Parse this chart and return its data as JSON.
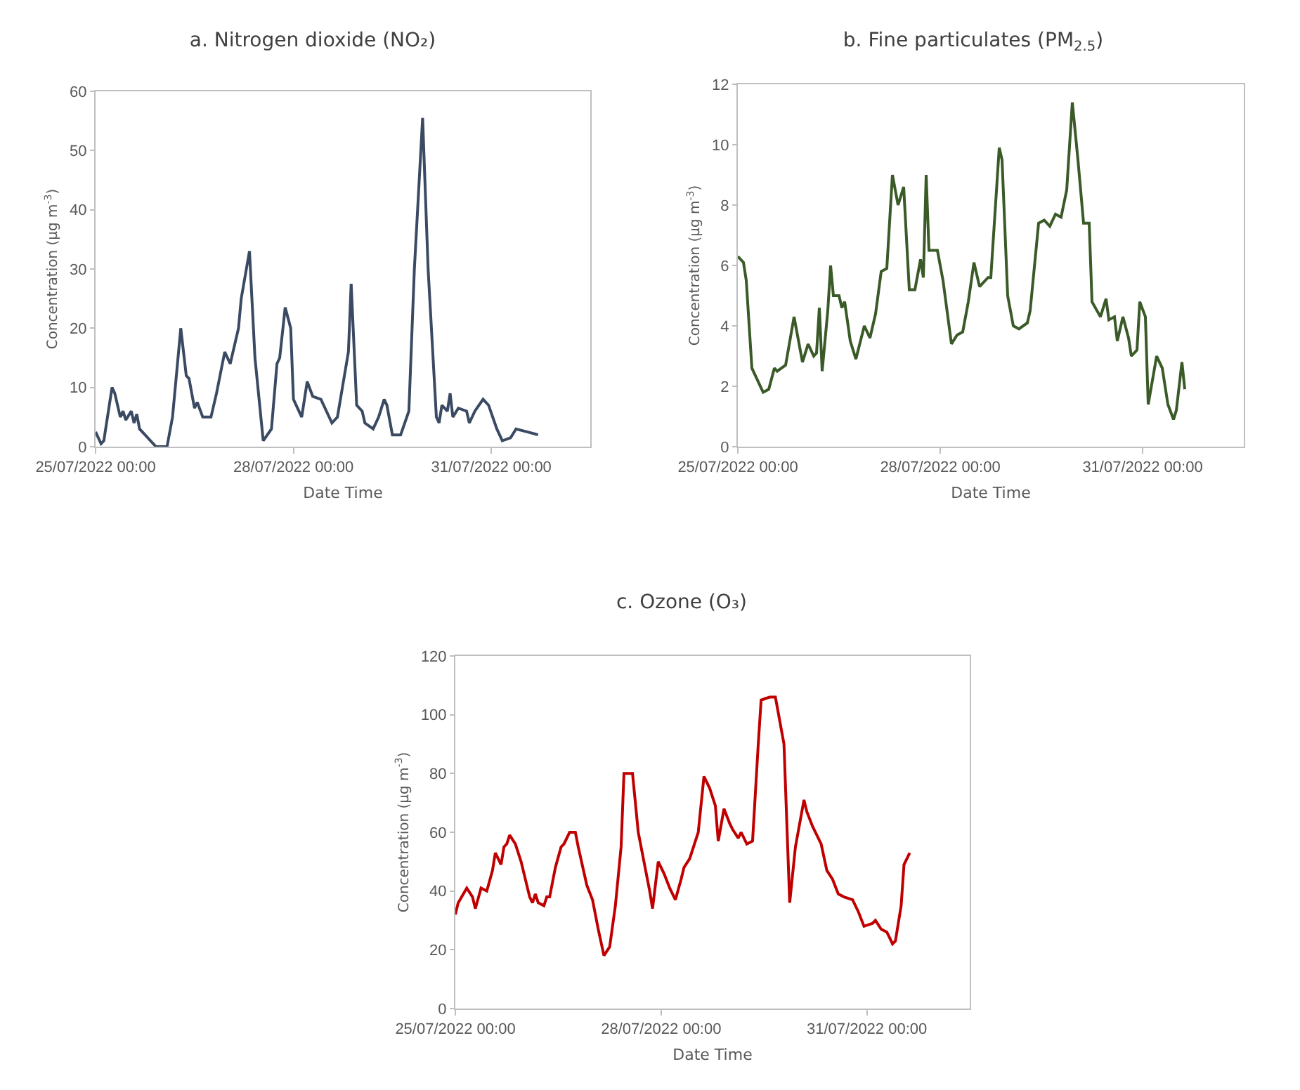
{
  "chart_data": [
    {
      "type": "line",
      "title": "a. Nitrogen dioxide (NO₂)",
      "xlabel": "Date Time",
      "ylabel": "Concentration (µg m$^{-3}$)",
      "color": "#3b4a63",
      "x": [
        "2022-07-25T00:00",
        "2022-07-25T02:00",
        "2022-07-25T03:00",
        "2022-07-25T06:00",
        "2022-07-25T07:00",
        "2022-07-25T09:00",
        "2022-07-25T10:00",
        "2022-07-25T11:00",
        "2022-07-25T13:00",
        "2022-07-25T14:00",
        "2022-07-25T15:00",
        "2022-07-25T16:00",
        "2022-07-25T18:00",
        "2022-07-25T20:00",
        "2022-07-25T22:00",
        "2022-07-26T02:00",
        "2022-07-26T04:00",
        "2022-07-26T07:00",
        "2022-07-26T09:00",
        "2022-07-26T10:00",
        "2022-07-26T12:00",
        "2022-07-26T13:00",
        "2022-07-26T15:00",
        "2022-07-26T18:00",
        "2022-07-26T20:00",
        "2022-07-26T23:00",
        "2022-07-27T01:00",
        "2022-07-27T04:00",
        "2022-07-27T05:00",
        "2022-07-27T08:00",
        "2022-07-27T10:00",
        "2022-07-27T13:00",
        "2022-07-27T16:00",
        "2022-07-27T18:00",
        "2022-07-27T19:00",
        "2022-07-27T21:00",
        "2022-07-27T23:00",
        "2022-07-28T00:00",
        "2022-07-28T03:00",
        "2022-07-28T05:00",
        "2022-07-28T07:00",
        "2022-07-28T10:00",
        "2022-07-28T14:00",
        "2022-07-28T16:00",
        "2022-07-28T20:00",
        "2022-07-28T21:00",
        "2022-07-28T23:00",
        "2022-07-29T01:00",
        "2022-07-29T02:00",
        "2022-07-29T05:00",
        "2022-07-29T07:00",
        "2022-07-29T09:00",
        "2022-07-29T10:00",
        "2022-07-29T12:00",
        "2022-07-29T15:00",
        "2022-07-29T18:00",
        "2022-07-29T20:00",
        "2022-07-29T23:00",
        "2022-07-30T01:00",
        "2022-07-30T04:00",
        "2022-07-30T05:00",
        "2022-07-30T06:00",
        "2022-07-30T08:00",
        "2022-07-30T09:00",
        "2022-07-30T10:00",
        "2022-07-30T12:00",
        "2022-07-30T15:00",
        "2022-07-30T16:00",
        "2022-07-30T18:00",
        "2022-07-30T21:00",
        "2022-07-30T23:00",
        "2022-07-31T02:00",
        "2022-07-31T04:00",
        "2022-07-31T07:00",
        "2022-07-31T09:00",
        "2022-07-31T13:00",
        "2022-07-31T17:00"
      ],
      "values": [
        2.5,
        0.5,
        1,
        10,
        9,
        5,
        6,
        4.5,
        6,
        4,
        5.5,
        3,
        2,
        1,
        0,
        0,
        5,
        20,
        12,
        11.5,
        6.5,
        7.5,
        5,
        5,
        9,
        16,
        14,
        20,
        25,
        33,
        15,
        1,
        3,
        14,
        15,
        23.5,
        20,
        8,
        5,
        11,
        8.5,
        8,
        4,
        5,
        16,
        27.5,
        7,
        6,
        4,
        3,
        5,
        8,
        7,
        2,
        2,
        6,
        30,
        55.5,
        30,
        5,
        4,
        7,
        6,
        9,
        5,
        6.5,
        6,
        4,
        6,
        8,
        7,
        3,
        1,
        1.5,
        3,
        2.5,
        2
      ],
      "xlim": [
        "2022-07-25",
        "2022-08-01T12:00"
      ],
      "xticks": [
        {
          "value": "2022-07-25",
          "label": "25/07/2022 00:00"
        },
        {
          "value": "2022-07-28",
          "label": "28/07/2022 00:00"
        },
        {
          "value": "2022-07-31",
          "label": "31/07/2022 00:00"
        }
      ],
      "ylim": [
        0,
        60
      ],
      "yticks": [
        0,
        10,
        20,
        30,
        40,
        50,
        60
      ]
    },
    {
      "type": "line",
      "title": "b. Fine particulates (PM$_{2.5}$)",
      "xlabel": "Date Time",
      "ylabel": "Concentration (µg m$^{-3}$)",
      "color": "#3a5a28",
      "x": [
        "2022-07-25T00:00",
        "2022-07-25T02:00",
        "2022-07-25T03:00",
        "2022-07-25T05:00",
        "2022-07-25T07:00",
        "2022-07-25T09:00",
        "2022-07-25T11:00",
        "2022-07-25T13:00",
        "2022-07-25T14:00",
        "2022-07-25T17:00",
        "2022-07-25T20:00",
        "2022-07-25T22:00",
        "2022-07-25T23:00",
        "2022-07-26T01:00",
        "2022-07-26T03:00",
        "2022-07-26T04:00",
        "2022-07-26T05:00",
        "2022-07-26T06:00",
        "2022-07-26T08:00",
        "2022-07-26T09:00",
        "2022-07-26T10:00",
        "2022-07-26T12:00",
        "2022-07-26T13:00",
        "2022-07-26T14:00",
        "2022-07-26T16:00",
        "2022-07-26T18:00",
        "2022-07-26T21:00",
        "2022-07-26T23:00",
        "2022-07-27T01:00",
        "2022-07-27T03:00",
        "2022-07-27T05:00",
        "2022-07-27T07:00",
        "2022-07-27T09:00",
        "2022-07-27T11:00",
        "2022-07-27T13:00",
        "2022-07-27T15:00",
        "2022-07-27T17:00",
        "2022-07-27T18:00",
        "2022-07-27T19:00",
        "2022-07-27T20:00",
        "2022-07-27T23:00",
        "2022-07-28T01:00",
        "2022-07-28T04:00",
        "2022-07-28T06:00",
        "2022-07-28T08:00",
        "2022-07-28T10:00",
        "2022-07-28T12:00",
        "2022-07-28T14:00",
        "2022-07-28T17:00",
        "2022-07-28T18:00",
        "2022-07-28T21:00",
        "2022-07-28T22:00",
        "2022-07-29T00:00",
        "2022-07-29T02:00",
        "2022-07-29T04:00",
        "2022-07-29T07:00",
        "2022-07-29T08:00",
        "2022-07-29T11:00",
        "2022-07-29T13:00",
        "2022-07-29T15:00",
        "2022-07-29T17:00",
        "2022-07-29T19:00",
        "2022-07-29T21:00",
        "2022-07-29T23:00",
        "2022-07-30T01:00",
        "2022-07-30T03:00",
        "2022-07-30T05:00",
        "2022-07-30T06:00",
        "2022-07-30T09:00",
        "2022-07-30T11:00",
        "2022-07-30T12:00",
        "2022-07-30T14:00",
        "2022-07-30T15:00",
        "2022-07-30T17:00",
        "2022-07-30T19:00",
        "2022-07-30T20:00",
        "2022-07-30T22:00",
        "2022-07-30T23:00",
        "2022-07-31T01:00",
        "2022-07-31T02:00",
        "2022-07-31T05:00",
        "2022-07-31T07:00",
        "2022-07-31T09:00",
        "2022-07-31T11:00",
        "2022-07-31T12:00",
        "2022-07-31T14:00",
        "2022-07-31T15:00"
      ],
      "values": [
        6.3,
        6.1,
        5.5,
        2.6,
        2.2,
        1.8,
        1.9,
        2.6,
        2.5,
        2.7,
        4.3,
        3.3,
        2.8,
        3.4,
        3.0,
        3.1,
        4.6,
        2.5,
        4.5,
        6.0,
        5.0,
        5.0,
        4.6,
        4.8,
        3.5,
        2.9,
        4.0,
        3.6,
        4.4,
        5.8,
        5.9,
        9.0,
        8.0,
        8.6,
        5.2,
        5.2,
        6.2,
        5.6,
        9.0,
        6.5,
        6.5,
        5.5,
        3.4,
        3.7,
        3.8,
        4.8,
        6.1,
        5.3,
        5.6,
        5.6,
        9.9,
        9.5,
        5.0,
        4.0,
        3.9,
        4.1,
        4.5,
        7.4,
        7.5,
        7.3,
        7.7,
        7.6,
        8.5,
        11.4,
        9.5,
        7.4,
        7.4,
        4.8,
        4.3,
        4.9,
        4.2,
        4.3,
        3.5,
        4.3,
        3.6,
        3.0,
        3.2,
        4.8,
        4.3,
        1.4,
        3.0,
        2.6,
        1.4,
        0.9,
        1.2,
        2.8,
        1.9
      ],
      "xlim": [
        "2022-07-25",
        "2022-08-01T12:00"
      ],
      "xticks": [
        {
          "value": "2022-07-25",
          "label": "25/07/2022 00:00"
        },
        {
          "value": "2022-07-28",
          "label": "28/07/2022 00:00"
        },
        {
          "value": "2022-07-31",
          "label": "31/07/2022 00:00"
        }
      ],
      "ylim": [
        0,
        12
      ],
      "yticks": [
        0,
        2,
        4,
        6,
        8,
        10,
        12
      ]
    },
    {
      "type": "line",
      "title": "c. Ozone (O₃)",
      "xlabel": "Date Time",
      "ylabel": "Concentration (µg m$^{-3}$)",
      "color": "#c00000",
      "x": [
        "2022-07-25T00:00",
        "2022-07-25T01:00",
        "2022-07-25T04:00",
        "2022-07-25T06:00",
        "2022-07-25T07:00",
        "2022-07-25T09:00",
        "2022-07-25T11:00",
        "2022-07-25T13:00",
        "2022-07-25T14:00",
        "2022-07-25T16:00",
        "2022-07-25T17:00",
        "2022-07-25T18:00",
        "2022-07-25T19:00",
        "2022-07-25T21:00",
        "2022-07-25T23:00",
        "2022-07-26T02:00",
        "2022-07-26T03:00",
        "2022-07-26T04:00",
        "2022-07-26T05:00",
        "2022-07-26T07:00",
        "2022-07-26T08:00",
        "2022-07-26T09:00",
        "2022-07-26T11:00",
        "2022-07-26T13:00",
        "2022-07-26T14:00",
        "2022-07-26T16:00",
        "2022-07-26T18:00",
        "2022-07-26T19:00",
        "2022-07-26T22:00",
        "2022-07-27T00:00",
        "2022-07-27T02:00",
        "2022-07-27T04:00",
        "2022-07-27T06:00",
        "2022-07-27T08:00",
        "2022-07-27T10:00",
        "2022-07-27T11:00",
        "2022-07-27T14:00",
        "2022-07-27T16:00",
        "2022-07-27T18:00",
        "2022-07-27T20:00",
        "2022-07-27T21:00",
        "2022-07-27T23:00",
        "2022-07-28T01:00",
        "2022-07-28T03:00",
        "2022-07-28T05:00",
        "2022-07-28T07:00",
        "2022-07-28T08:00",
        "2022-07-28T10:00",
        "2022-07-28T13:00",
        "2022-07-28T15:00",
        "2022-07-28T17:00",
        "2022-07-28T19:00",
        "2022-07-28T20:00",
        "2022-07-28T22:00",
        "2022-07-29T00:00",
        "2022-07-29T01:00",
        "2022-07-29T03:00",
        "2022-07-29T04:00",
        "2022-07-29T06:00",
        "2022-07-29T08:00",
        "2022-07-29T10:00",
        "2022-07-29T11:00",
        "2022-07-29T14:00",
        "2022-07-29T16:00",
        "2022-07-29T19:00",
        "2022-07-29T21:00",
        "2022-07-29T23:00",
        "2022-07-30T02:00",
        "2022-07-30T03:00",
        "2022-07-30T05:00",
        "2022-07-30T08:00",
        "2022-07-30T10:00",
        "2022-07-30T12:00",
        "2022-07-30T14:00",
        "2022-07-30T16:00",
        "2022-07-30T19:00",
        "2022-07-30T21:00",
        "2022-07-30T23:00",
        "2022-07-31T02:00",
        "2022-07-31T03:00",
        "2022-07-31T05:00",
        "2022-07-31T07:00",
        "2022-07-31T09:00",
        "2022-07-31T10:00",
        "2022-07-31T12:00",
        "2022-07-31T13:00",
        "2022-07-31T15:00"
      ],
      "values": [
        32,
        36,
        41,
        38,
        34,
        41,
        40,
        47,
        53,
        49,
        55,
        56,
        59,
        56,
        50,
        38,
        36,
        39,
        36,
        35,
        38,
        38,
        48,
        55,
        56,
        60,
        60,
        55,
        42,
        37,
        27,
        18,
        21,
        35,
        55,
        80,
        80,
        60,
        50,
        40,
        34,
        50,
        46,
        41,
        37,
        44,
        48,
        51,
        60,
        79,
        75,
        69,
        57,
        68,
        63,
        61,
        58,
        60,
        56,
        57,
        90,
        105,
        106,
        106,
        90,
        36,
        55,
        71,
        67,
        62,
        56,
        47,
        44,
        39,
        38,
        37,
        33,
        28,
        29,
        30,
        27,
        26,
        22,
        23,
        35,
        49,
        53
      ],
      "xlim": [
        "2022-07-25",
        "2022-08-01T12:00"
      ],
      "xticks": [
        {
          "value": "2022-07-25",
          "label": "25/07/2022 00:00"
        },
        {
          "value": "2022-07-28",
          "label": "28/07/2022 00:00"
        },
        {
          "value": "2022-07-31",
          "label": "31/07/2022 00:00"
        }
      ],
      "ylim": [
        0,
        120
      ],
      "yticks": [
        0,
        20,
        40,
        60,
        80,
        100,
        120
      ]
    }
  ]
}
